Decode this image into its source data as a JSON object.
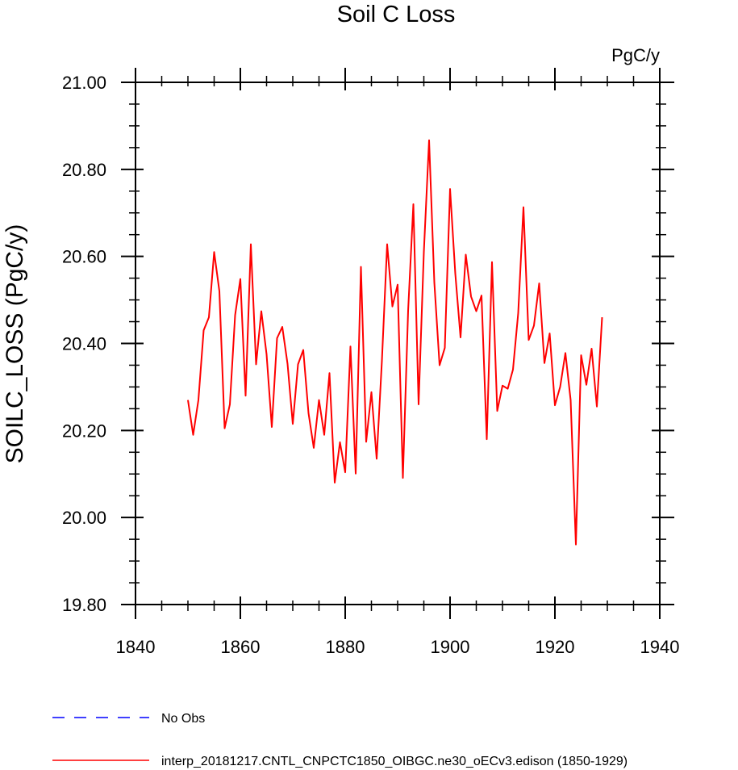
{
  "chart_data": {
    "type": "line",
    "title": "Soil C Loss",
    "units": "PgC/y",
    "xlabel": "",
    "ylabel": "SOILC_LOSS  (PgC/y)",
    "xlim": [
      1840,
      1940
    ],
    "ylim": [
      19.8,
      21.0
    ],
    "x_ticks": [
      1840,
      1860,
      1880,
      1900,
      1920,
      1940
    ],
    "x_tick_labels": [
      "1840",
      "1860",
      "1880",
      "1900",
      "1920",
      "1940"
    ],
    "y_ticks": [
      19.8,
      20.0,
      20.2,
      20.4,
      20.6,
      20.8,
      21.0
    ],
    "y_tick_labels": [
      "19.80",
      "20.00",
      "20.20",
      "20.40",
      "20.60",
      "20.80",
      "21.00"
    ],
    "x_minor_step": 5,
    "y_minor_step": 0.05,
    "grid": false,
    "series": [
      {
        "name": "interp_20181217.CNTL_CNPCTC1850_OIBGC.ne30_oECv3.edison (1850-1929)",
        "color": "#ff0000",
        "style": "solid",
        "x": [
          1850,
          1851,
          1852,
          1853,
          1854,
          1855,
          1856,
          1857,
          1858,
          1859,
          1860,
          1861,
          1862,
          1863,
          1864,
          1865,
          1866,
          1867,
          1868,
          1869,
          1870,
          1871,
          1872,
          1873,
          1874,
          1875,
          1876,
          1877,
          1878,
          1879,
          1880,
          1881,
          1882,
          1883,
          1884,
          1885,
          1886,
          1887,
          1888,
          1889,
          1890,
          1891,
          1892,
          1893,
          1894,
          1895,
          1896,
          1897,
          1898,
          1899,
          1900,
          1901,
          1902,
          1903,
          1904,
          1905,
          1906,
          1907,
          1908,
          1909,
          1910,
          1911,
          1912,
          1913,
          1914,
          1915,
          1916,
          1917,
          1918,
          1919,
          1920,
          1921,
          1922,
          1923,
          1924,
          1925,
          1926,
          1927,
          1928,
          1929
        ],
        "values": [
          20.27,
          20.19,
          20.27,
          20.43,
          20.46,
          20.61,
          20.52,
          20.205,
          20.26,
          20.465,
          20.548,
          20.28,
          20.628,
          20.352,
          20.474,
          20.375,
          20.208,
          20.412,
          20.438,
          20.353,
          20.215,
          20.352,
          20.385,
          20.24,
          20.16,
          20.27,
          20.19,
          20.332,
          20.08,
          20.173,
          20.104,
          20.393,
          20.101,
          20.576,
          20.174,
          20.288,
          20.135,
          20.36,
          20.628,
          20.485,
          20.535,
          20.091,
          20.475,
          20.72,
          20.26,
          20.61,
          20.867,
          20.54,
          20.35,
          20.39,
          20.755,
          20.56,
          20.414,
          20.604,
          20.508,
          20.474,
          20.51,
          20.18,
          20.587,
          20.245,
          20.303,
          20.296,
          20.34,
          20.47,
          20.713,
          20.408,
          20.441,
          20.538,
          20.355,
          20.423,
          20.258,
          20.3,
          20.378,
          20.27,
          19.938,
          20.373,
          20.305,
          20.388,
          20.255,
          20.46
        ]
      }
    ],
    "legend": [
      {
        "label": "No Obs",
        "color": "#0000ff",
        "style": "dashed"
      },
      {
        "label": "interp_20181217.CNTL_CNPCTC1850_OIBGC.ne30_oECv3.edison (1850-1929)",
        "color": "#ff0000",
        "style": "solid"
      }
    ],
    "legend_position": "bottom"
  }
}
